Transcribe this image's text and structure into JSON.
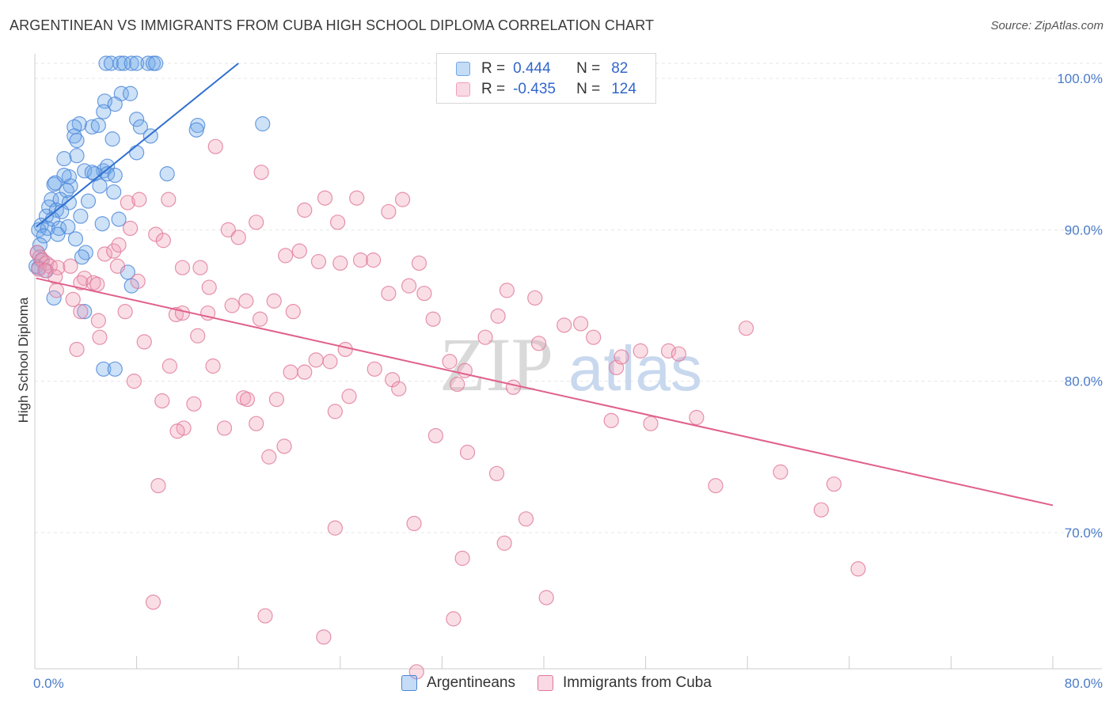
{
  "title": "ARGENTINEAN VS IMMIGRANTS FROM CUBA HIGH SCHOOL DIPLOMA CORRELATION CHART",
  "source": "Source: ZipAtlas.com",
  "watermark": {
    "zip": "ZIP",
    "atlas": "atlas"
  },
  "legend": {
    "r_label": "R =",
    "n_label": "N =",
    "rows": [
      {
        "r": "0.444",
        "n": "82",
        "color": "#6fa8e8"
      },
      {
        "r": "-0.435",
        "n": "124",
        "color": "#f0a0b8"
      }
    ]
  },
  "chart_data": {
    "type": "scatter",
    "xlabel": "",
    "ylabel": "High School Diploma",
    "xlim": [
      0,
      80
    ],
    "ylim": [
      60,
      100
    ],
    "x_tick_labels": [
      "0.0%",
      "80.0%"
    ],
    "y_ticks": [
      70,
      80,
      90,
      100
    ],
    "y_tick_labels": [
      "70.0%",
      "80.0%",
      "90.0%",
      "100.0%"
    ],
    "grid": true,
    "series": [
      {
        "name": "Argentineans",
        "color": "#6fa8e8",
        "stroke": "#4a86d8",
        "trend": {
          "x0": 0.1,
          "y0": 90.2,
          "x1": 16.0,
          "y1": 101.0,
          "color": "#2f6fd0"
        },
        "points": [
          [
            5.6,
            101.0
          ],
          [
            6.0,
            101.0
          ],
          [
            6.7,
            101.0
          ],
          [
            7.0,
            101.0
          ],
          [
            7.6,
            101.0
          ],
          [
            8.0,
            101.0
          ],
          [
            8.9,
            101.0
          ],
          [
            9.3,
            101.0
          ],
          [
            9.5,
            101.0
          ],
          [
            6.8,
            99.0
          ],
          [
            7.5,
            99.0
          ],
          [
            5.5,
            98.5
          ],
          [
            6.3,
            98.3
          ],
          [
            5.4,
            97.8
          ],
          [
            8.0,
            97.3
          ],
          [
            8.3,
            96.8
          ],
          [
            3.5,
            97.0
          ],
          [
            3.1,
            96.8
          ],
          [
            4.5,
            96.8
          ],
          [
            5.0,
            96.9
          ],
          [
            12.8,
            96.9
          ],
          [
            12.7,
            96.6
          ],
          [
            17.9,
            97.0
          ],
          [
            3.1,
            96.2
          ],
          [
            3.3,
            95.9
          ],
          [
            6.1,
            96.0
          ],
          [
            9.1,
            96.2
          ],
          [
            8.0,
            95.1
          ],
          [
            3.3,
            94.9
          ],
          [
            2.3,
            94.7
          ],
          [
            3.9,
            93.9
          ],
          [
            5.4,
            93.9
          ],
          [
            4.7,
            93.7
          ],
          [
            5.7,
            94.2
          ],
          [
            4.5,
            93.8
          ],
          [
            2.7,
            93.5
          ],
          [
            2.3,
            93.6
          ],
          [
            5.7,
            93.7
          ],
          [
            6.3,
            93.6
          ],
          [
            10.4,
            93.7
          ],
          [
            1.5,
            93.0
          ],
          [
            1.6,
            93.1
          ],
          [
            2.8,
            92.9
          ],
          [
            5.1,
            92.9
          ],
          [
            2.5,
            92.6
          ],
          [
            6.2,
            92.5
          ],
          [
            1.3,
            92.0
          ],
          [
            2.0,
            92.0
          ],
          [
            2.7,
            91.8
          ],
          [
            4.2,
            91.9
          ],
          [
            1.1,
            91.5
          ],
          [
            1.7,
            91.3
          ],
          [
            2.1,
            91.2
          ],
          [
            0.9,
            90.9
          ],
          [
            1.4,
            90.7
          ],
          [
            0.5,
            90.3
          ],
          [
            0.3,
            90.0
          ],
          [
            3.6,
            90.9
          ],
          [
            5.3,
            90.4
          ],
          [
            6.6,
            90.7
          ],
          [
            1.0,
            90.1
          ],
          [
            1.9,
            90.1
          ],
          [
            2.6,
            90.2
          ],
          [
            1.8,
            89.7
          ],
          [
            0.7,
            89.6
          ],
          [
            3.2,
            89.4
          ],
          [
            0.4,
            89.0
          ],
          [
            0.2,
            88.5
          ],
          [
            4.0,
            88.5
          ],
          [
            3.7,
            88.2
          ],
          [
            0.5,
            88.0
          ],
          [
            0.3,
            87.5
          ],
          [
            0.1,
            87.6
          ],
          [
            0.9,
            87.3
          ],
          [
            7.3,
            87.2
          ],
          [
            7.6,
            86.3
          ],
          [
            1.5,
            85.5
          ],
          [
            3.9,
            84.6
          ],
          [
            5.4,
            80.8
          ],
          [
            6.3,
            80.8
          ]
        ]
      },
      {
        "name": "Immigrants from Cuba",
        "color": "#f0a0b8",
        "stroke": "#e07898",
        "trend": {
          "x0": 0.1,
          "y0": 86.8,
          "x1": 80.0,
          "y1": 71.8,
          "color": "#e0608c"
        },
        "points": [
          [
            0.2,
            88.5
          ],
          [
            0.4,
            88.2
          ],
          [
            0.6,
            88.0
          ],
          [
            0.9,
            87.8
          ],
          [
            0.3,
            87.4
          ],
          [
            1.2,
            87.6
          ],
          [
            1.8,
            87.5
          ],
          [
            2.8,
            87.6
          ],
          [
            0.8,
            87.3
          ],
          [
            1.6,
            86.9
          ],
          [
            3.9,
            86.8
          ],
          [
            3.6,
            86.5
          ],
          [
            4.6,
            86.5
          ],
          [
            1.7,
            86.0
          ],
          [
            4.9,
            86.4
          ],
          [
            5.5,
            88.4
          ],
          [
            6.2,
            88.6
          ],
          [
            6.6,
            89.0
          ],
          [
            7.5,
            90.1
          ],
          [
            9.5,
            89.7
          ],
          [
            10.1,
            89.3
          ],
          [
            7.3,
            91.8
          ],
          [
            8.2,
            92.0
          ],
          [
            10.5,
            92.0
          ],
          [
            6.5,
            87.6
          ],
          [
            8.1,
            86.6
          ],
          [
            11.6,
            87.5
          ],
          [
            3.0,
            85.4
          ],
          [
            3.6,
            84.6
          ],
          [
            5.0,
            84.0
          ],
          [
            7.1,
            84.6
          ],
          [
            11.1,
            84.4
          ],
          [
            11.6,
            84.5
          ],
          [
            13.6,
            84.5
          ],
          [
            5.1,
            82.9
          ],
          [
            8.6,
            82.6
          ],
          [
            12.8,
            83.0
          ],
          [
            3.3,
            82.1
          ],
          [
            10.6,
            81.0
          ],
          [
            14.0,
            81.0
          ],
          [
            7.8,
            80.0
          ],
          [
            10.0,
            78.7
          ],
          [
            12.5,
            78.5
          ],
          [
            11.7,
            76.9
          ],
          [
            11.2,
            76.7
          ],
          [
            9.7,
            73.1
          ],
          [
            14.9,
            76.9
          ],
          [
            16.4,
            78.9
          ],
          [
            16.7,
            78.8
          ],
          [
            17.4,
            77.2
          ],
          [
            15.5,
            85.0
          ],
          [
            16.6,
            85.3
          ],
          [
            17.7,
            84.1
          ],
          [
            18.8,
            85.3
          ],
          [
            20.3,
            84.6
          ],
          [
            19.6,
            75.7
          ],
          [
            18.4,
            75.0
          ],
          [
            20.1,
            80.6
          ],
          [
            19.0,
            78.8
          ],
          [
            21.2,
            80.6
          ],
          [
            22.1,
            81.4
          ],
          [
            23.2,
            81.3
          ],
          [
            23.6,
            78.0
          ],
          [
            24.7,
            79.0
          ],
          [
            26.7,
            80.8
          ],
          [
            28.1,
            80.1
          ],
          [
            28.6,
            79.5
          ],
          [
            27.8,
            85.8
          ],
          [
            29.4,
            86.3
          ],
          [
            30.6,
            85.8
          ],
          [
            31.3,
            84.1
          ],
          [
            31.5,
            76.4
          ],
          [
            29.8,
            70.6
          ],
          [
            30.0,
            60.8
          ],
          [
            22.7,
            63.1
          ],
          [
            18.1,
            64.5
          ],
          [
            9.3,
            65.4
          ],
          [
            23.6,
            70.3
          ],
          [
            24.4,
            82.1
          ],
          [
            14.2,
            95.5
          ],
          [
            17.8,
            93.8
          ],
          [
            21.2,
            91.3
          ],
          [
            22.8,
            92.1
          ],
          [
            23.8,
            90.5
          ],
          [
            25.3,
            92.1
          ],
          [
            27.8,
            91.2
          ],
          [
            28.9,
            92.0
          ],
          [
            25.6,
            88.0
          ],
          [
            24.0,
            87.8
          ],
          [
            26.6,
            88.0
          ],
          [
            22.3,
            87.9
          ],
          [
            19.7,
            88.3
          ],
          [
            20.8,
            88.6
          ],
          [
            15.2,
            90.0
          ],
          [
            16.0,
            89.5
          ],
          [
            17.4,
            90.5
          ],
          [
            13.0,
            87.5
          ],
          [
            13.7,
            86.2
          ],
          [
            30.2,
            87.8
          ],
          [
            32.6,
            81.3
          ],
          [
            33.2,
            79.8
          ],
          [
            33.8,
            80.7
          ],
          [
            35.4,
            82.9
          ],
          [
            36.4,
            84.3
          ],
          [
            37.1,
            86.0
          ],
          [
            37.6,
            79.6
          ],
          [
            36.9,
            69.3
          ],
          [
            38.6,
            70.9
          ],
          [
            39.3,
            85.5
          ],
          [
            39.6,
            82.5
          ],
          [
            40.2,
            65.7
          ],
          [
            41.6,
            83.7
          ],
          [
            42.9,
            83.8
          ],
          [
            43.9,
            82.9
          ],
          [
            45.3,
            77.4
          ],
          [
            45.7,
            80.9
          ],
          [
            46.1,
            81.6
          ],
          [
            47.6,
            82.0
          ],
          [
            48.4,
            77.2
          ],
          [
            49.8,
            82.0
          ],
          [
            50.6,
            81.8
          ],
          [
            52.0,
            77.6
          ],
          [
            53.5,
            73.1
          ],
          [
            55.9,
            83.5
          ],
          [
            58.6,
            74.0
          ],
          [
            61.8,
            71.5
          ],
          [
            62.8,
            73.2
          ],
          [
            64.7,
            67.6
          ],
          [
            33.6,
            68.3
          ],
          [
            32.9,
            64.3
          ],
          [
            36.3,
            73.9
          ],
          [
            34.0,
            75.3
          ]
        ]
      }
    ]
  }
}
